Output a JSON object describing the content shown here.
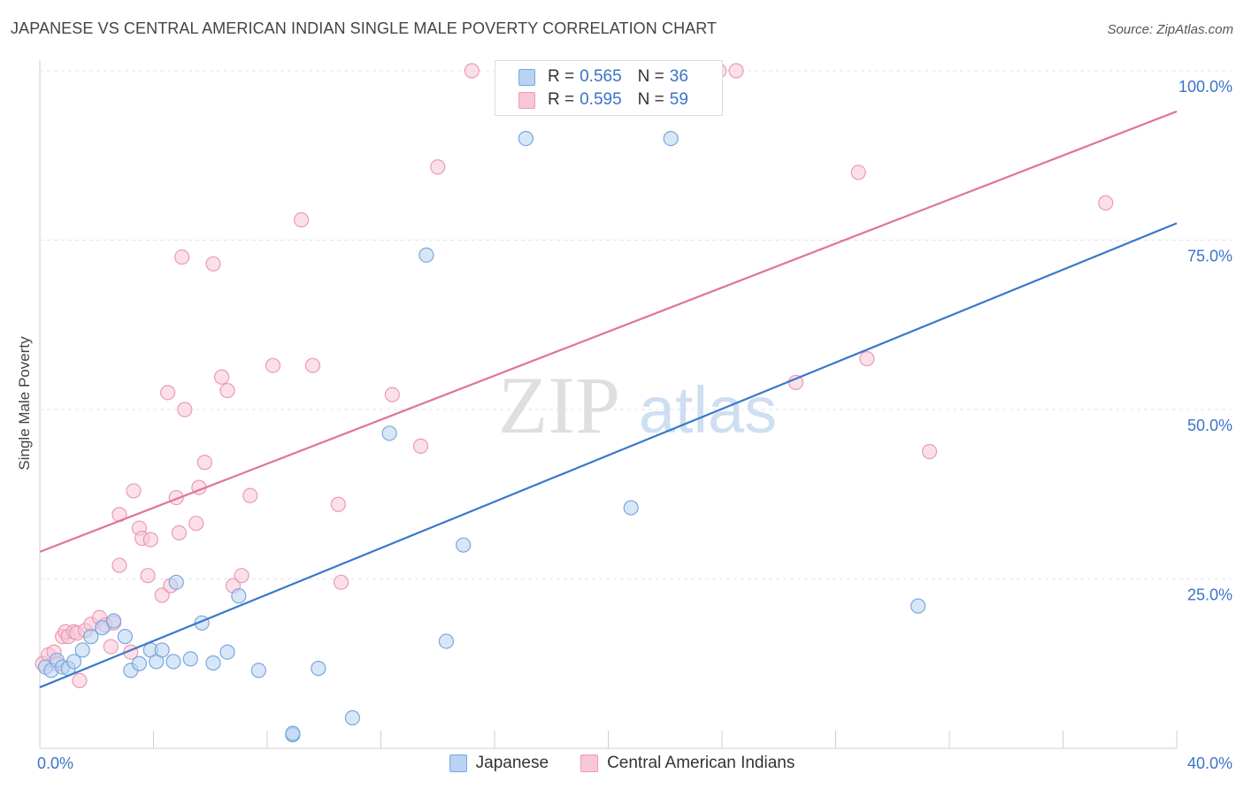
{
  "header": {
    "title": "JAPANESE VS CENTRAL AMERICAN INDIAN SINGLE MALE POVERTY CORRELATION CHART",
    "source": "Source: ZipAtlas.com"
  },
  "watermark": {
    "zip": "ZIP",
    "atlas": "atlas"
  },
  "legend": {
    "r_label": "R =",
    "n_label": "N =",
    "entries": [
      {
        "r": "0.565",
        "n": "36"
      },
      {
        "r": "0.595",
        "n": "59"
      }
    ]
  },
  "colors": {
    "japanese_fill": "#b8d3f3",
    "japanese_stroke": "#7aa7de",
    "japanese_line": "#3a78cc",
    "cai_fill": "#f8c7d6",
    "cai_stroke": "#ec9ab4",
    "cai_line": "#e0739a",
    "tick_text": "#3b73c8",
    "grid": "#e3e3e3"
  },
  "chart_data": {
    "type": "scatter",
    "title": "JAPANESE VS CENTRAL AMERICAN INDIAN SINGLE MALE POVERTY CORRELATION CHART",
    "xlabel": "",
    "ylabel": "Single Male Poverty",
    "xlim": [
      0,
      40
    ],
    "ylim": [
      0,
      102
    ],
    "x_tick_labels": [
      {
        "value": 0,
        "label": "0.0%"
      },
      {
        "value": 40,
        "label": "40.0%"
      }
    ],
    "y_tick_labels": [
      {
        "value": 25,
        "label": "25.0%"
      },
      {
        "value": 50,
        "label": "50.0%"
      },
      {
        "value": 75,
        "label": "75.0%"
      },
      {
        "value": 100,
        "label": "100.0%"
      }
    ],
    "grid": true,
    "legend_position": "bottom-center",
    "series": [
      {
        "name": "Japanese",
        "points": [
          [
            0.2,
            12.0
          ],
          [
            0.4,
            11.5
          ],
          [
            0.6,
            13.0
          ],
          [
            0.8,
            12.0
          ],
          [
            1.0,
            11.8
          ],
          [
            1.2,
            12.8
          ],
          [
            1.8,
            16.5
          ],
          [
            2.2,
            17.8
          ],
          [
            2.6,
            18.8
          ],
          [
            3.0,
            16.5
          ],
          [
            3.2,
            11.5
          ],
          [
            3.5,
            12.5
          ],
          [
            3.9,
            14.5
          ],
          [
            4.1,
            12.8
          ],
          [
            4.3,
            14.5
          ],
          [
            4.7,
            12.8
          ],
          [
            4.8,
            24.5
          ],
          [
            5.3,
            13.2
          ],
          [
            5.7,
            18.5
          ],
          [
            6.1,
            12.6
          ],
          [
            6.6,
            14.2
          ],
          [
            7.0,
            22.5
          ],
          [
            7.7,
            11.5
          ],
          [
            8.9,
            2.0
          ],
          [
            8.9,
            2.2
          ],
          [
            9.8,
            11.8
          ],
          [
            11.0,
            4.5
          ],
          [
            12.3,
            46.5
          ],
          [
            13.6,
            72.8
          ],
          [
            14.3,
            15.8
          ],
          [
            14.9,
            30.0
          ],
          [
            17.1,
            90.0
          ],
          [
            20.8,
            35.5
          ],
          [
            22.2,
            90.0
          ],
          [
            30.9,
            21.0
          ],
          [
            1.5,
            14.5
          ]
        ]
      },
      {
        "name": "Central American Indians",
        "points": [
          [
            0.1,
            12.5
          ],
          [
            0.3,
            13.8
          ],
          [
            0.5,
            14.2
          ],
          [
            0.6,
            12.5
          ],
          [
            0.8,
            16.5
          ],
          [
            0.9,
            17.2
          ],
          [
            1.0,
            16.5
          ],
          [
            1.2,
            17.2
          ],
          [
            1.3,
            17.0
          ],
          [
            1.4,
            10.0
          ],
          [
            1.6,
            17.4
          ],
          [
            1.8,
            18.3
          ],
          [
            2.1,
            19.3
          ],
          [
            2.3,
            18.2
          ],
          [
            2.5,
            15.0
          ],
          [
            2.6,
            18.5
          ],
          [
            2.8,
            27.0
          ],
          [
            2.8,
            34.5
          ],
          [
            3.2,
            14.2
          ],
          [
            3.3,
            38.0
          ],
          [
            3.5,
            32.5
          ],
          [
            3.6,
            31.0
          ],
          [
            3.8,
            25.5
          ],
          [
            3.9,
            30.8
          ],
          [
            4.3,
            22.6
          ],
          [
            4.5,
            52.5
          ],
          [
            4.6,
            24.0
          ],
          [
            4.8,
            37.0
          ],
          [
            4.9,
            31.8
          ],
          [
            5.0,
            72.5
          ],
          [
            5.1,
            50.0
          ],
          [
            5.5,
            33.2
          ],
          [
            5.6,
            38.5
          ],
          [
            5.8,
            42.2
          ],
          [
            6.1,
            71.5
          ],
          [
            6.4,
            54.8
          ],
          [
            6.6,
            52.8
          ],
          [
            6.8,
            24.0
          ],
          [
            7.1,
            25.5
          ],
          [
            7.4,
            37.3
          ],
          [
            8.2,
            56.5
          ],
          [
            9.2,
            78.0
          ],
          [
            9.6,
            56.5
          ],
          [
            10.5,
            36.0
          ],
          [
            10.6,
            24.5
          ],
          [
            12.4,
            52.2
          ],
          [
            13.4,
            44.6
          ],
          [
            14.0,
            85.8
          ],
          [
            15.2,
            100
          ],
          [
            17.8,
            100
          ],
          [
            19.1,
            100
          ],
          [
            20.5,
            100
          ],
          [
            23.9,
            100
          ],
          [
            24.5,
            100
          ],
          [
            26.6,
            54.0
          ],
          [
            28.8,
            85.0
          ],
          [
            29.1,
            57.5
          ],
          [
            31.3,
            43.8
          ],
          [
            37.5,
            80.5
          ]
        ]
      }
    ],
    "trendlines": [
      {
        "series": "Japanese",
        "from": [
          0,
          9.0
        ],
        "to": [
          40,
          77.5
        ]
      },
      {
        "series": "Central American Indians",
        "from": [
          0,
          29.0
        ],
        "to": [
          40,
          94.0
        ]
      }
    ]
  }
}
